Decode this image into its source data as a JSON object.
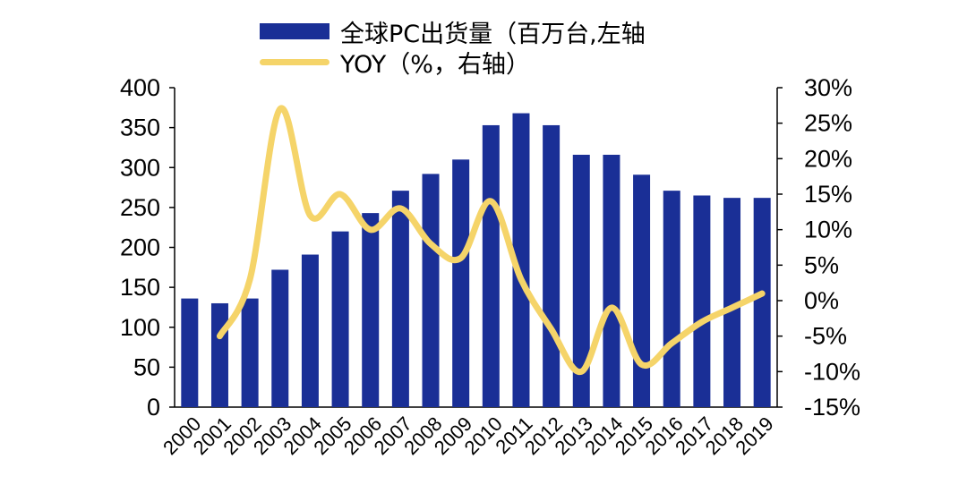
{
  "chart_data": {
    "type": "bar",
    "categories": [
      "2000",
      "2001",
      "2002",
      "2003",
      "2004",
      "2005",
      "2006",
      "2007",
      "2008",
      "2009",
      "2010",
      "2011",
      "2012",
      "2013",
      "2014",
      "2015",
      "2016",
      "2017",
      "2018",
      "2019"
    ],
    "series": [
      {
        "name": "全球PC出货量（百万台,左轴",
        "type": "bar",
        "axis": "left",
        "color": "#1a2f96",
        "values": [
          136,
          130,
          136,
          172,
          191,
          220,
          243,
          271,
          292,
          310,
          353,
          368,
          353,
          316,
          316,
          291,
          271,
          265,
          262,
          262
        ]
      },
      {
        "name": "YOY（%，右轴）",
        "type": "line",
        "axis": "right",
        "color": "#f5d469",
        "values": [
          null,
          -5,
          3,
          27,
          12,
          15,
          10,
          13,
          8,
          6,
          14,
          3,
          -4,
          -10,
          -1,
          -9,
          -6,
          -3,
          -1,
          1
        ]
      }
    ],
    "y_left": {
      "ylim": [
        0,
        400
      ],
      "ticks": [
        0,
        50,
        100,
        150,
        200,
        250,
        300,
        350,
        400
      ]
    },
    "y_right": {
      "ylim": [
        -15,
        30
      ],
      "ticks": [
        "-15%",
        "-10%",
        "-5%",
        "0%",
        "5%",
        "10%",
        "15%",
        "20%",
        "25%",
        "30%"
      ]
    },
    "legend_position": "top-center",
    "grid": false
  }
}
